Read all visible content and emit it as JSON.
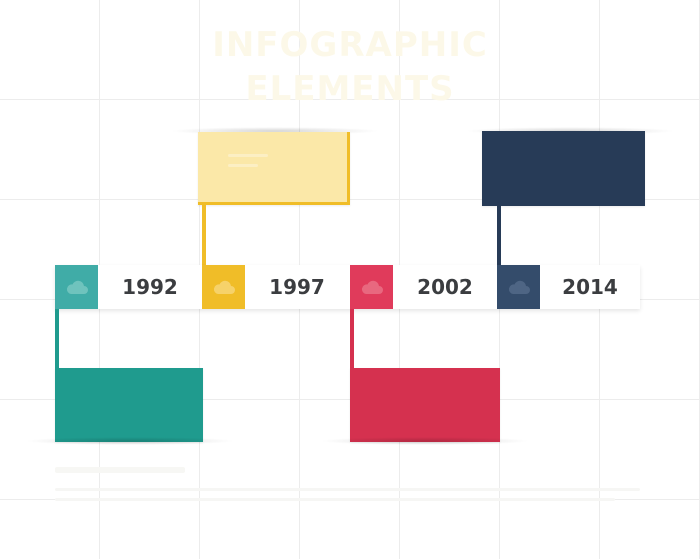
{
  "title": {
    "line1": "INFOGRAPHIC",
    "line2": "ELEMENTS"
  },
  "colors": {
    "teal": "#1f9b8e",
    "teal_light": "#40aca7",
    "yellow": "#f0bd28",
    "yellow_pale": "#fbe8a8",
    "red": "#d5314f",
    "red_light": "#e03b5b",
    "navy": "#273b57",
    "navy_light": "#344c6b"
  },
  "timeline": [
    {
      "year": "1992",
      "icon": "cloud-icon",
      "color": "teal"
    },
    {
      "year": "1997",
      "icon": "cloud-icon",
      "color": "yellow"
    },
    {
      "year": "2002",
      "icon": "cloud-icon",
      "color": "red"
    },
    {
      "year": "2014",
      "icon": "cloud-icon",
      "color": "navy"
    }
  ]
}
